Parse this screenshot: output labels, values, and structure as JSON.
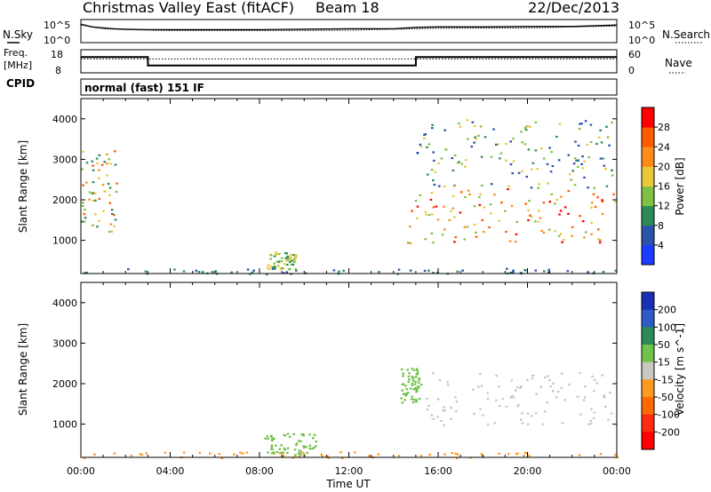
{
  "header": {
    "title": "Christmas Valley East (fitACF)",
    "beam": "Beam 18",
    "date": "22/Dec/2013"
  },
  "noise_panel": {
    "left_label": "N.Sky",
    "right_label": "N.Search",
    "left_ticks": [
      "10^5",
      "10^0"
    ],
    "right_ticks": [
      "10^5",
      "10^0"
    ]
  },
  "freq_panel": {
    "left_label_1": "Freq.",
    "left_label_2": "[MHz]",
    "right_label": "Nave",
    "left_ticks": [
      "18",
      "8"
    ],
    "right_ticks": [
      "60",
      "0"
    ]
  },
  "cpid": {
    "label": "CPID",
    "mode": "normal (fast) 151 IF"
  },
  "chart_data": [
    {
      "type": "line",
      "panel": "noise",
      "series": [
        {
          "name": "N.Sky",
          "style": "solid",
          "x_hours": [
            0,
            0.5,
            1,
            1.5,
            2,
            3,
            4,
            6,
            8,
            10,
            12,
            14,
            15,
            16,
            18,
            20,
            22,
            24
          ],
          "log10_values": [
            4.0,
            3.4,
            3.2,
            3.0,
            2.9,
            2.8,
            2.8,
            2.8,
            2.8,
            2.9,
            3.0,
            3.0,
            3.3,
            3.4,
            3.4,
            3.5,
            3.5,
            3.8
          ]
        },
        {
          "name": "N.Search",
          "style": "dotted",
          "x_hours": [
            0,
            1,
            2,
            4,
            8,
            12,
            15,
            16,
            20,
            24
          ],
          "log10_values": [
            3.8,
            3.0,
            2.8,
            2.6,
            2.6,
            2.7,
            3.0,
            3.1,
            3.2,
            3.6
          ]
        }
      ]
    },
    {
      "type": "line",
      "panel": "frequency",
      "series": [
        {
          "name": "Freq.",
          "unit": "MHz",
          "style": "solid",
          "x_hours": [
            0,
            3,
            3,
            15,
            15,
            24
          ],
          "values": [
            14.8,
            14.8,
            11.2,
            11.2,
            14.8,
            14.8
          ]
        },
        {
          "name": "Nave",
          "style": "dotted",
          "x_hours": [
            0,
            24
          ],
          "values": [
            14,
            14
          ]
        }
      ]
    },
    {
      "type": "heatmap",
      "panel": "power",
      "ylabel": "Slant Range [km]",
      "xlabel": "",
      "y_ticks": [
        "1000",
        "2000",
        "3000",
        "4000"
      ],
      "ylim": [
        180,
        4500
      ],
      "xlim": [
        0,
        24
      ],
      "colorbar": {
        "label": "Power [dB]",
        "ticks": [
          "4",
          "8",
          "12",
          "16",
          "20",
          "24",
          "28"
        ],
        "colors": [
          "#1a3cff",
          "#2a52a8",
          "#2e8b57",
          "#7fc241",
          "#e8c83a",
          "#ff8c1a",
          "#ff5b00",
          "#ff0000"
        ]
      },
      "regions": [
        {
          "desc": "near-range ground band",
          "x": [
            0,
            24
          ],
          "y": [
            180,
            320
          ],
          "power": [
            4,
            12
          ]
        },
        {
          "desc": "midday blob",
          "x": [
            8.3,
            9.6
          ],
          "y": [
            300,
            750
          ],
          "power": [
            8,
            20
          ]
        },
        {
          "desc": "early arc",
          "x": [
            0,
            1.6
          ],
          "y": [
            1200,
            3300
          ],
          "power": [
            8,
            28
          ]
        },
        {
          "desc": "evening scatter",
          "x": [
            14.6,
            23.9
          ],
          "y": [
            950,
            2300
          ],
          "power": [
            12,
            30
          ]
        },
        {
          "desc": "upper scatter",
          "x": [
            15,
            24
          ],
          "y": [
            2300,
            4000
          ],
          "power": [
            4,
            20
          ]
        }
      ]
    },
    {
      "type": "heatmap",
      "panel": "velocity",
      "ylabel": "Slant Range [km]",
      "xlabel": "Time UT",
      "x_ticks": [
        "00:00",
        "04:00",
        "08:00",
        "12:00",
        "16:00",
        "20:00",
        "00:00"
      ],
      "y_ticks": [
        "1000",
        "2000",
        "3000",
        "4000"
      ],
      "ylim": [
        180,
        4500
      ],
      "xlim": [
        0,
        24
      ],
      "colorbar": {
        "label": "Velocity [m s^-1]",
        "ticks": [
          "200",
          "100",
          "50",
          "15",
          "-15",
          "-50",
          "-100",
          "-200"
        ],
        "colors": [
          "#1a2fb8",
          "#2d5cc8",
          "#2e8b57",
          "#6fc24a",
          "#c8c8c0",
          "#ff9a20",
          "#ff6a00",
          "#ff2a10",
          "#ff0000"
        ]
      },
      "regions": [
        {
          "desc": "ground band",
          "x": [
            0,
            24
          ],
          "y": [
            180,
            330
          ],
          "velocity": [
            -50,
            -15
          ]
        },
        {
          "desc": "midday",
          "x": [
            8.2,
            10.5
          ],
          "y": [
            250,
            800
          ],
          "velocity": [
            15,
            50
          ]
        },
        {
          "desc": "evening main",
          "x": [
            15.3,
            23.9
          ],
          "y": [
            1000,
            2300
          ],
          "velocity": [
            -15,
            15
          ]
        },
        {
          "desc": "slanted stripe",
          "x": [
            14.3,
            15.2
          ],
          "y": [
            1550,
            2400
          ],
          "velocity": [
            15,
            50
          ]
        }
      ]
    }
  ]
}
